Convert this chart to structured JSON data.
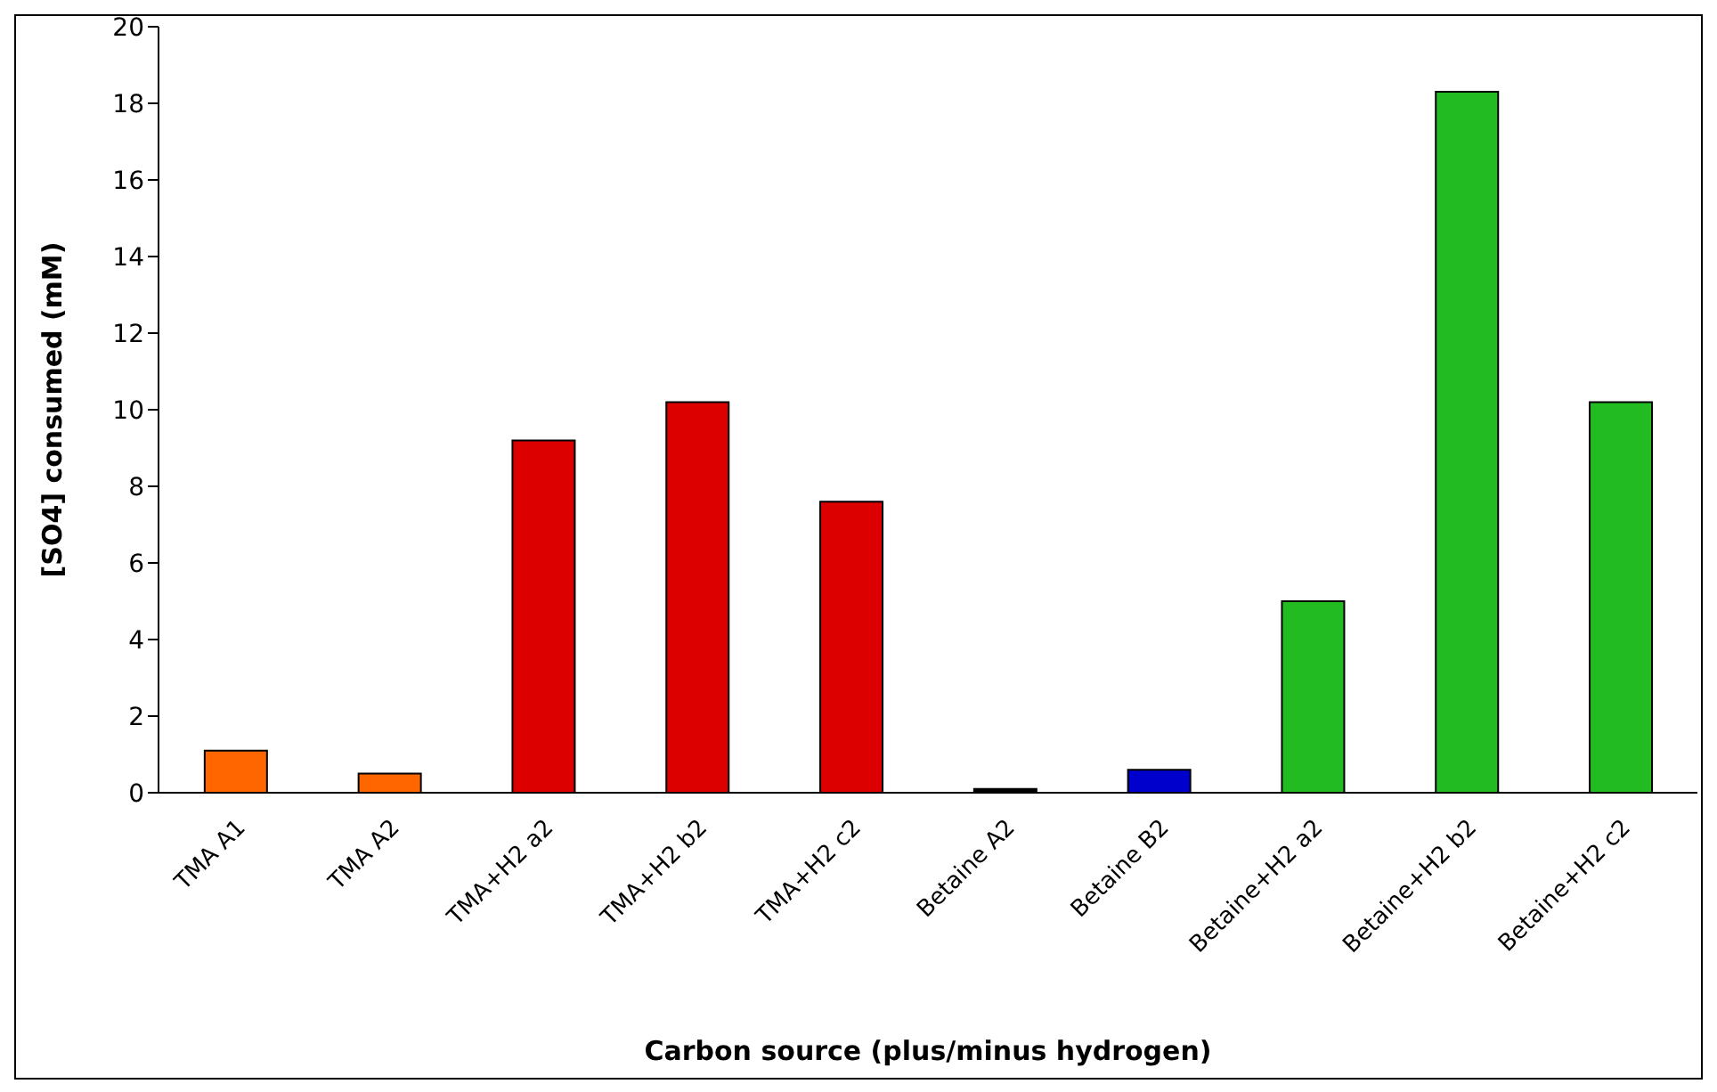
{
  "chart_data": {
    "type": "bar",
    "xlabel": "Carbon source (plus/minus hydrogen)",
    "ylabel": "[SO4] consumed (mM)",
    "categories": [
      "TMA A1",
      "TMA A2",
      "TMA+H2 a2",
      "TMA+H2 b2",
      "TMA+H2 c2",
      "Betaine A2",
      "Betaine B2",
      "Betaine+H2 a2",
      "Betaine+H2 b2",
      "Betaine+H2 c2"
    ],
    "values": [
      1.1,
      0.5,
      9.2,
      10.2,
      7.6,
      0.1,
      0.6,
      5.0,
      18.3,
      10.2
    ],
    "colors": [
      "#ff6600",
      "#ff6600",
      "#dd0000",
      "#dd0000",
      "#dd0000",
      "#000000",
      "#0000cc",
      "#22bb22",
      "#22bb22",
      "#22bb22"
    ],
    "ylim": [
      0,
      20
    ],
    "yticks": [
      0,
      2,
      4,
      6,
      8,
      10,
      12,
      14,
      16,
      18,
      20
    ],
    "grid": false
  }
}
